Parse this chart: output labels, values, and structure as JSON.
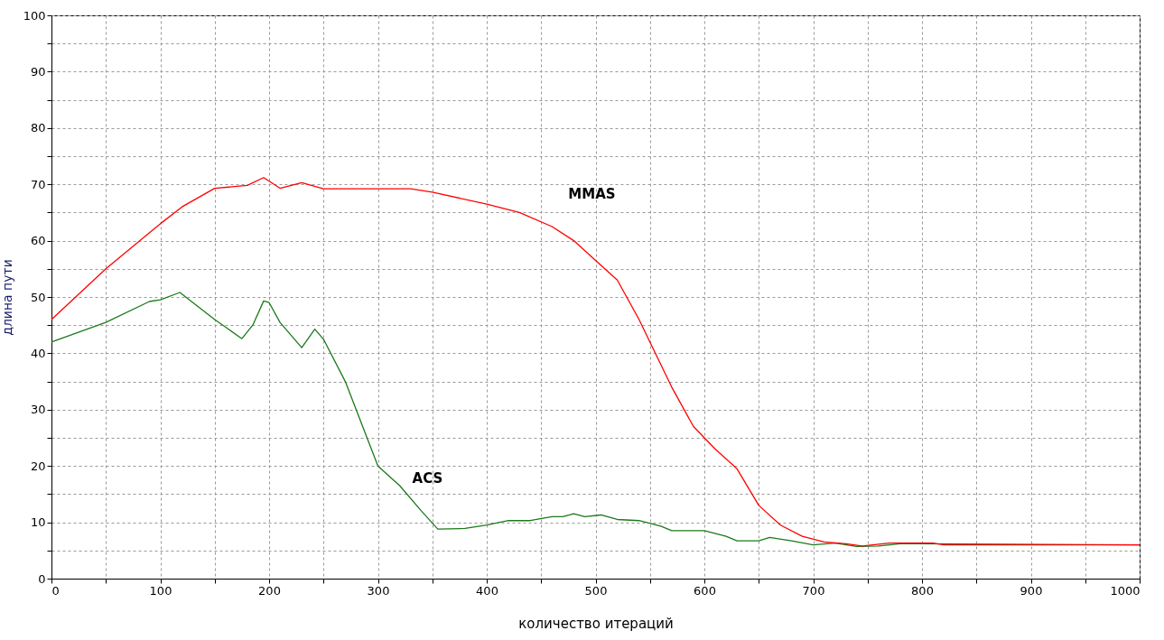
{
  "chart_data": {
    "type": "line",
    "xlabel": "количество итераций",
    "ylabel": "длина пути",
    "xlim": [
      0,
      1000
    ],
    "ylim": [
      0,
      100
    ],
    "xticks": [
      0,
      {
        "value": 50,
        "label": null
      },
      100,
      {
        "value": 150,
        "label": null
      },
      200,
      {
        "value": 250,
        "label": null
      },
      300,
      {
        "value": 350,
        "label": null
      },
      400,
      {
        "value": 450,
        "label": null
      },
      500,
      {
        "value": 550,
        "label": null
      },
      600,
      {
        "value": 650,
        "label": null
      },
      700,
      {
        "value": 750,
        "label": null
      },
      800,
      {
        "value": 850,
        "label": null
      },
      900,
      {
        "value": 950,
        "label": null
      },
      1000
    ],
    "yticks": [
      0,
      {
        "value": 5,
        "label": null
      },
      10,
      {
        "value": 15,
        "label": null
      },
      20,
      {
        "value": 25,
        "label": null
      },
      30,
      {
        "value": 35,
        "label": null
      },
      40,
      {
        "value": 45,
        "label": null
      },
      50,
      {
        "value": 55,
        "label": null
      },
      60,
      {
        "value": 65,
        "label": null
      },
      70,
      {
        "value": 75,
        "label": null
      },
      80,
      {
        "value": 85,
        "label": null
      },
      90,
      {
        "value": 95,
        "label": null
      },
      100
    ],
    "grid": true,
    "legend": false,
    "marker": "none",
    "line_style": "solid",
    "series": [
      {
        "name": "MMAS",
        "color": "#ff0000",
        "x": [
          0,
          50,
          100,
          120,
          150,
          180,
          195,
          210,
          230,
          250,
          330,
          350,
          400,
          430,
          460,
          480,
          500,
          520,
          540,
          550,
          570,
          590,
          610,
          630,
          650,
          670,
          690,
          710,
          730,
          745,
          770,
          810,
          820,
          1000
        ],
        "values": [
          46,
          55,
          63,
          66,
          69.3,
          69.8,
          71.2,
          69.3,
          70.3,
          69.2,
          69.2,
          68.6,
          66.5,
          65,
          62.5,
          60,
          56.5,
          53,
          46,
          42,
          34,
          27,
          23,
          19.5,
          13,
          9.5,
          7.5,
          6.5,
          6.2,
          5.8,
          6.3,
          6.3,
          6,
          6
        ]
      },
      {
        "name": "ACS",
        "color": "#1a7a1a",
        "x": [
          0,
          50,
          90,
          100,
          118,
          130,
          150,
          175,
          185,
          195,
          200,
          210,
          230,
          242,
          250,
          270,
          290,
          300,
          320,
          340,
          355,
          380,
          400,
          420,
          440,
          460,
          470,
          480,
          490,
          505,
          520,
          540,
          560,
          570,
          600,
          620,
          630,
          650,
          660,
          680,
          700,
          720,
          740,
          760,
          780,
          1000
        ],
        "values": [
          42,
          45.5,
          49.2,
          49.5,
          50.8,
          49,
          46,
          42.6,
          45,
          49.3,
          49,
          45.5,
          41,
          44.3,
          42.5,
          35,
          25,
          20,
          16.5,
          12,
          8.8,
          8.9,
          9.5,
          10.3,
          10.3,
          11,
          11,
          11.5,
          11,
          11.3,
          10.5,
          10.3,
          9.3,
          8.5,
          8.5,
          7.5,
          6.7,
          6.7,
          7.3,
          6.7,
          6,
          6.3,
          5.7,
          5.8,
          6.2,
          6
        ]
      }
    ]
  }
}
